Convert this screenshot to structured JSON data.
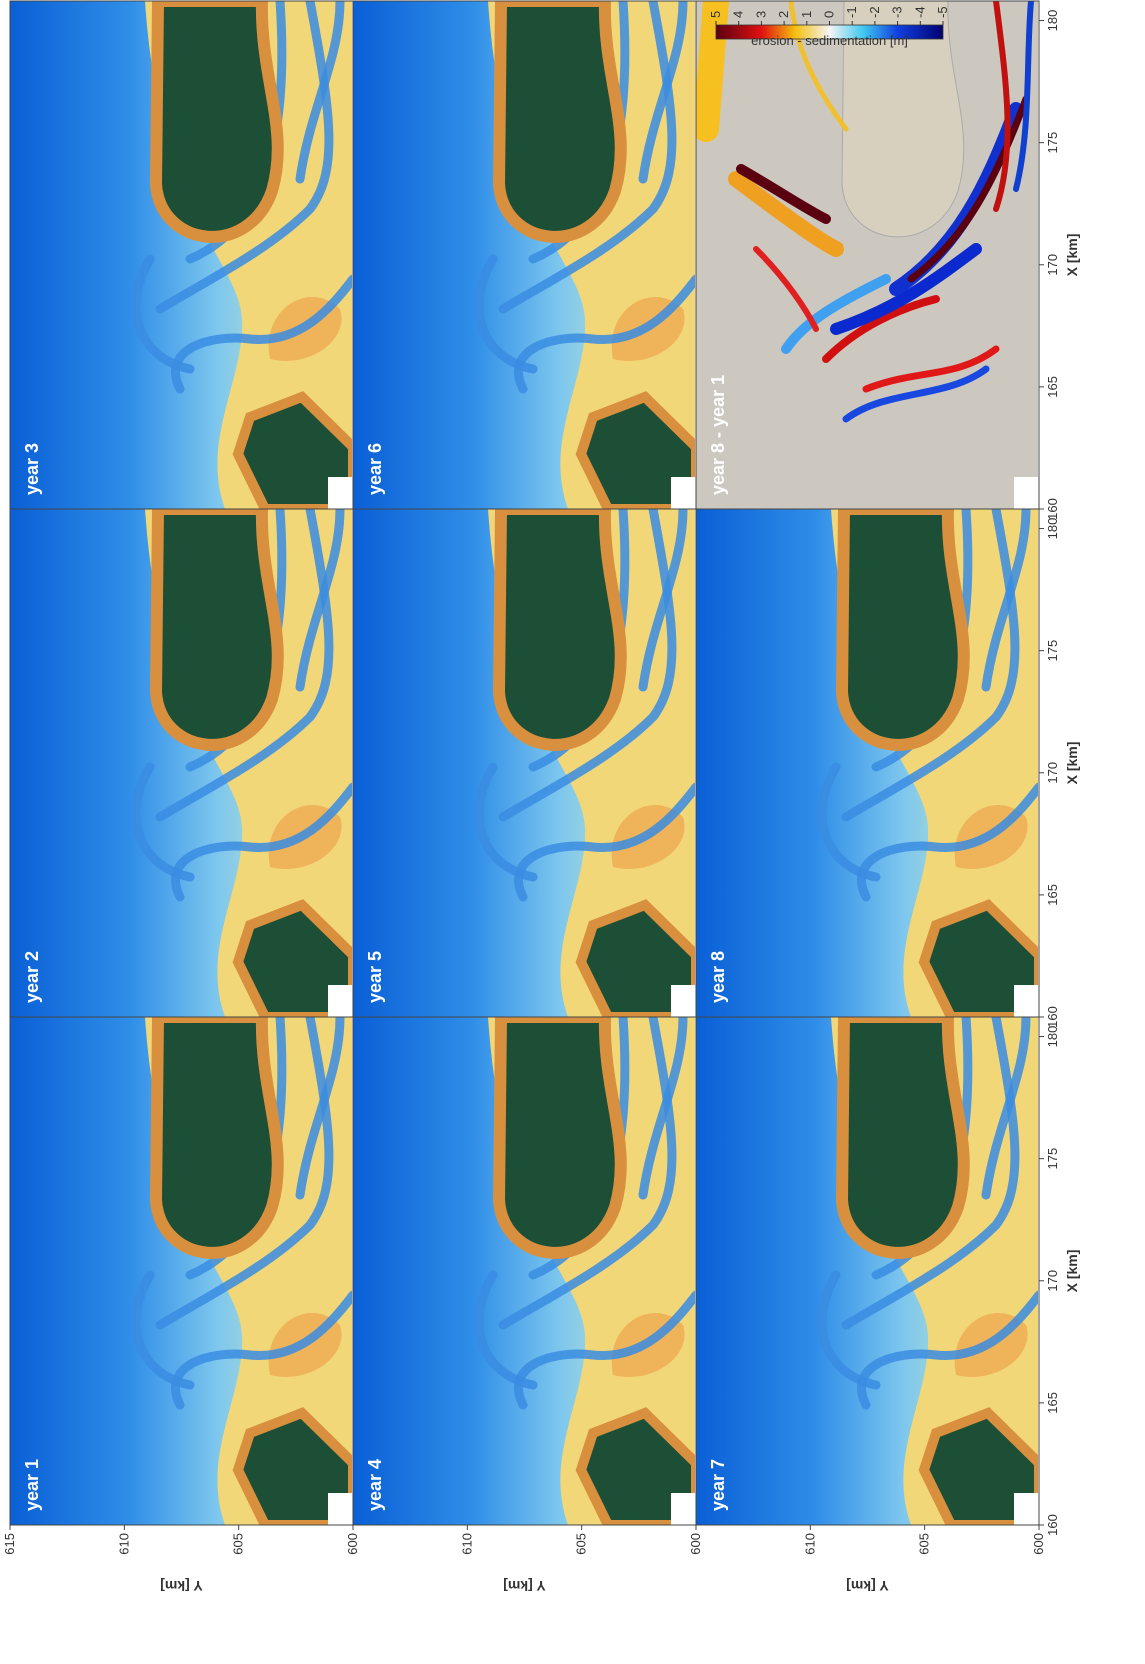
{
  "panels": [
    {
      "label": "year 1"
    },
    {
      "label": "year 2"
    },
    {
      "label": "year 3"
    },
    {
      "label": "year 4"
    },
    {
      "label": "year 5"
    },
    {
      "label": "year 6"
    },
    {
      "label": "year 7"
    },
    {
      "label": "year 8"
    },
    {
      "label": "year 8 - year 1"
    }
  ],
  "x_axis": {
    "label": "X [km]",
    "lim": [
      160,
      180.8
    ],
    "ticks": [
      160,
      165,
      170,
      175,
      180
    ]
  },
  "y_axis": {
    "label": "Y [km]",
    "lim": [
      600,
      615
    ],
    "ticks": [
      615,
      610,
      605,
      600
    ]
  },
  "colorbar": {
    "label": "erosion  -  sedimentation [m]",
    "lim": [
      -5,
      5
    ],
    "ticks": [
      5,
      4,
      3,
      2,
      1,
      0,
      -1,
      -2,
      -3,
      -4,
      -5
    ]
  }
}
